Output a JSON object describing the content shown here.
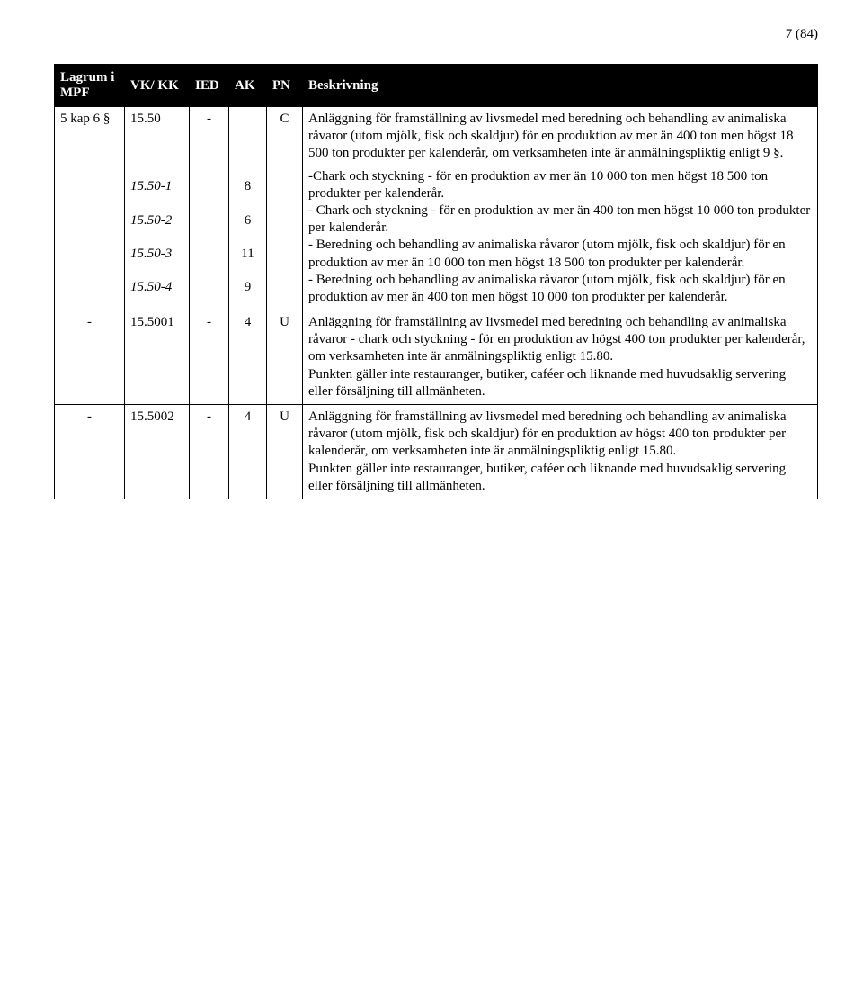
{
  "pageLabel": "7 (84)",
  "headers": {
    "lagrum": "Lagrum i MPF",
    "vkkk": "VK/ KK",
    "ied": "IED",
    "ak": "AK",
    "pn": "PN",
    "beskrivning": "Beskrivning"
  },
  "rows": [
    {
      "lagrum": "5 kap 6 §",
      "vkkk": "15.50",
      "ied": "-",
      "ak": "",
      "pn": "C",
      "beskr": "Anläggning för framställning av livsmedel med beredning och behandling av animaliska råvaror (utom mjölk, fisk och skaldjur) för en produktion av mer än 400 ton men högst 18 500 ton produkter per kalenderår, om verksamheten inte är anmälningspliktig enligt 9 §."
    },
    {
      "lagrum": "",
      "vkkk": "15.50-1",
      "ied": "",
      "ak": "8",
      "pn": "",
      "beskr": "-Chark och styckning - för en produktion av mer än 10 000 ton men högst 18 500 ton produkter per kalenderår."
    },
    {
      "lagrum": "",
      "vkkk": "15.50-2",
      "ied": "",
      "ak": "6",
      "pn": "",
      "beskr": "- Chark och styckning - för en produktion av mer än 400 ton men högst 10 000 ton produkter per kalenderår."
    },
    {
      "lagrum": "",
      "vkkk": "15.50-3",
      "ied": "",
      "ak": "11",
      "pn": "",
      "beskr": "- Beredning och behandling av animaliska råvaror (utom mjölk, fisk och skaldjur) för en produktion av mer än 10 000 ton men högst 18 500 ton produkter per kalenderår."
    },
    {
      "lagrum": "",
      "vkkk": "15.50-4",
      "ied": "",
      "ak": "9",
      "pn": "",
      "beskr": "- Beredning och behandling av animaliska råvaror (utom mjölk, fisk och skaldjur) för en produktion av mer än 400 ton men högst 10 000 ton produkter per kalenderår."
    },
    {
      "lagrum": "-",
      "vkkk": "15.5001",
      "ied": "-",
      "ak": "4",
      "pn": "U",
      "multi": [
        "Anläggning för framställning av livsmedel med beredning och behandling av animaliska råvaror - chark och styckning - för en produktion av högst 400 ton produkter per kalenderår, om verksamheten inte är anmälningspliktig enligt 15.80.",
        "Punkten gäller inte restauranger, butiker, caféer och liknande med huvudsaklig servering eller försäljning till allmänheten."
      ]
    },
    {
      "lagrum": "-",
      "vkkk": "15.5002",
      "ied": "-",
      "ak": "4",
      "pn": "U",
      "multi": [
        "Anläggning för framställning av livsmedel med beredning och behandling av animaliska råvaror (utom mjölk, fisk och skaldjur) för en produktion av högst 400 ton produkter per kalenderår, om verksamheten inte är anmälningspliktig enligt 15.80.",
        "Punkten gäller inte restauranger, butiker, caféer och liknande med huvudsaklig servering eller försäljning till allmänheten."
      ]
    }
  ]
}
